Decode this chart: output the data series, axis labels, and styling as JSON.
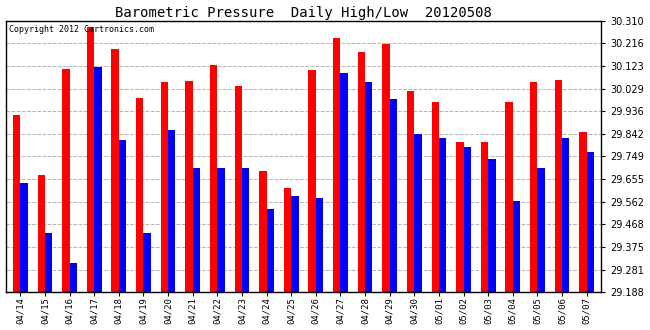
{
  "title": "Barometric Pressure  Daily High/Low  20120508",
  "copyright": "Copyright 2012 Cartronics.com",
  "background_color": "#ffffff",
  "bar_color_high": "#ff0000",
  "bar_color_low": "#0000ff",
  "ymin": 29.188,
  "ymax": 30.31,
  "yticks": [
    29.188,
    29.281,
    29.375,
    29.468,
    29.562,
    29.655,
    29.749,
    29.842,
    29.936,
    30.029,
    30.123,
    30.216,
    30.31
  ],
  "dates": [
    "04/14",
    "04/15",
    "04/16",
    "04/17",
    "04/18",
    "04/19",
    "04/20",
    "04/21",
    "04/22",
    "04/23",
    "04/24",
    "04/25",
    "04/26",
    "04/27",
    "04/28",
    "04/29",
    "04/30",
    "05/01",
    "05/02",
    "05/03",
    "05/04",
    "05/05",
    "05/06",
    "05/07"
  ],
  "highs": [
    29.92,
    29.67,
    30.11,
    30.285,
    30.195,
    29.99,
    30.055,
    30.06,
    30.125,
    30.04,
    29.69,
    29.62,
    30.105,
    30.24,
    30.18,
    30.215,
    30.02,
    29.975,
    29.808,
    29.808,
    29.975,
    30.055,
    30.065,
    29.848
  ],
  "lows": [
    29.64,
    29.43,
    29.31,
    30.12,
    29.815,
    29.43,
    29.86,
    29.7,
    29.7,
    29.7,
    29.53,
    29.585,
    29.575,
    30.095,
    30.055,
    29.985,
    29.84,
    29.825,
    29.788,
    29.74,
    29.565,
    29.7,
    29.825,
    29.768
  ]
}
